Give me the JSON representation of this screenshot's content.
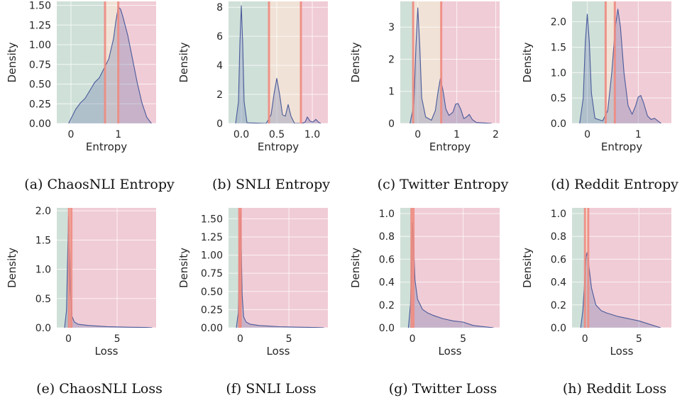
{
  "chart_data": [
    {
      "type": "area",
      "caption": "(a) ChaosNLI Entropy",
      "xlabel": "Entropy",
      "ylabel": "Density",
      "xlim": [
        -0.3,
        1.8
      ],
      "ylim": [
        0,
        1.55
      ],
      "xticks": [
        0,
        1
      ],
      "yticks": [
        0,
        0.25,
        0.5,
        0.75,
        1.0,
        1.25,
        1.5
      ],
      "ytick_labels": [
        "0.00",
        "0.25",
        "0.50",
        "0.75",
        "1.00",
        "1.25",
        "1.50"
      ],
      "thresholds": [
        0.72,
        1.0
      ],
      "regions": [
        "#cfe0d8",
        "#f0e2d6",
        "#f0ccd6"
      ],
      "density": {
        "x": [
          -0.05,
          0.0,
          0.1,
          0.2,
          0.3,
          0.4,
          0.5,
          0.6,
          0.7,
          0.8,
          0.9,
          0.95,
          1.0,
          1.05,
          1.1,
          1.2,
          1.3,
          1.4,
          1.5,
          1.6,
          1.7
        ],
        "y": [
          0.0,
          0.06,
          0.18,
          0.26,
          0.32,
          0.42,
          0.52,
          0.58,
          0.7,
          0.82,
          1.08,
          1.3,
          1.48,
          1.45,
          1.35,
          1.12,
          0.82,
          0.52,
          0.26,
          0.08,
          0.0
        ]
      }
    },
    {
      "type": "area",
      "caption": "(b) SNLI Entropy",
      "xlabel": "Entropy",
      "ylabel": "Density",
      "xlim": [
        -0.18,
        1.22
      ],
      "ylim": [
        0,
        8.4
      ],
      "xticks": [
        0,
        0.5,
        1
      ],
      "xtick_labels": [
        "0.0",
        "0.5",
        "1.0"
      ],
      "yticks": [
        0,
        2,
        4,
        6,
        8
      ],
      "thresholds": [
        0.39,
        0.84
      ],
      "regions": [
        "#cfe0d8",
        "#f0e2d6",
        "#f0ccd6"
      ],
      "density": {
        "x": [
          -0.08,
          -0.04,
          -0.02,
          0.0,
          0.02,
          0.04,
          0.08,
          0.35,
          0.42,
          0.46,
          0.5,
          0.54,
          0.58,
          0.62,
          0.66,
          0.7,
          0.75,
          0.85,
          0.9,
          0.93,
          0.97,
          1.01,
          1.05,
          1.09,
          1.12
        ],
        "y": [
          0.0,
          1.5,
          5.5,
          8.1,
          5.5,
          1.5,
          0.05,
          0.0,
          0.6,
          2.0,
          3.1,
          2.0,
          0.6,
          0.5,
          1.3,
          0.5,
          0.0,
          0.0,
          0.1,
          0.45,
          0.15,
          0.1,
          0.28,
          0.08,
          0.0
        ]
      }
    },
    {
      "type": "area",
      "caption": "(c) Twitter Entropy",
      "xlabel": "Entropy",
      "ylabel": "Density",
      "xlim": [
        -0.45,
        2.1
      ],
      "ylim": [
        0,
        3.8
      ],
      "xticks": [
        0,
        1,
        2
      ],
      "yticks": [
        0,
        1,
        2,
        3
      ],
      "thresholds": [
        -0.12,
        0.6
      ],
      "regions": [
        "#cfe0d8",
        "#f0e2d6",
        "#f0ccd6"
      ],
      "density": {
        "x": [
          -0.2,
          -0.1,
          -0.05,
          0.0,
          0.05,
          0.1,
          0.2,
          0.35,
          0.45,
          0.52,
          0.58,
          0.65,
          0.72,
          0.8,
          0.9,
          0.97,
          1.03,
          1.1,
          1.18,
          1.25,
          1.32,
          1.4,
          1.5,
          1.9
        ],
        "y": [
          0.0,
          0.6,
          2.4,
          3.6,
          2.4,
          0.8,
          0.2,
          0.1,
          0.4,
          1.0,
          1.4,
          1.0,
          0.45,
          0.25,
          0.35,
          0.6,
          0.62,
          0.45,
          0.15,
          0.2,
          0.28,
          0.12,
          0.03,
          0.0
        ]
      }
    },
    {
      "type": "area",
      "caption": "(d) Reddit Entropy",
      "xlabel": "Entropy",
      "ylabel": "Density",
      "xlim": [
        -0.3,
        1.65
      ],
      "ylim": [
        0,
        2.4
      ],
      "xticks": [
        0,
        1
      ],
      "yticks": [
        0,
        0.5,
        1.0,
        1.5,
        2.0
      ],
      "ytick_labels": [
        "0.0",
        "0.5",
        "1.0",
        "1.5",
        "2.0"
      ],
      "thresholds": [
        0.36,
        0.54
      ],
      "regions": [
        "#cfe0d8",
        "#f0e2d6",
        "#f0ccd6"
      ],
      "density": {
        "x": [
          -0.15,
          -0.08,
          -0.04,
          0.0,
          0.04,
          0.08,
          0.15,
          0.3,
          0.4,
          0.48,
          0.55,
          0.6,
          0.65,
          0.72,
          0.8,
          0.88,
          0.95,
          1.0,
          1.05,
          1.1,
          1.18,
          1.25,
          1.32,
          1.45
        ],
        "y": [
          0.0,
          0.5,
          1.6,
          2.15,
          1.6,
          0.6,
          0.1,
          0.05,
          0.25,
          1.0,
          1.9,
          2.25,
          1.9,
          1.0,
          0.35,
          0.18,
          0.35,
          0.52,
          0.55,
          0.42,
          0.15,
          0.08,
          0.1,
          0.0
        ]
      }
    },
    {
      "type": "area",
      "caption": "(e) ChaosNLI Loss",
      "xlabel": "Loss",
      "ylabel": "Density",
      "xlim": [
        -1.2,
        9.0
      ],
      "ylim": [
        0,
        2.05
      ],
      "xticks": [
        0,
        5
      ],
      "yticks": [
        0,
        0.5,
        1.0,
        1.5,
        2.0
      ],
      "ytick_labels": [
        "0.0",
        "0.5",
        "1.0",
        "1.5",
        "2.0"
      ],
      "thresholds": [
        0.05,
        0.3
      ],
      "regions": [
        "#cfe0d8",
        "#f0e2d6",
        "#f0ccd6"
      ],
      "density": {
        "x": [
          -0.4,
          -0.2,
          -0.1,
          0.0,
          0.1,
          0.2,
          0.35,
          0.6,
          1.0,
          2.0,
          4.0,
          6.0,
          8.0,
          8.6
        ],
        "y": [
          0.0,
          0.3,
          1.1,
          1.9,
          1.5,
          0.6,
          0.2,
          0.1,
          0.06,
          0.04,
          0.02,
          0.01,
          0.005,
          0.0
        ]
      }
    },
    {
      "type": "area",
      "caption": "(f) SNLI Loss",
      "xlabel": "Loss",
      "ylabel": "Density",
      "xlim": [
        -1.2,
        9.0
      ],
      "ylim": [
        0,
        1.65
      ],
      "xticks": [
        0,
        5
      ],
      "yticks": [
        0,
        0.25,
        0.5,
        0.75,
        1.0,
        1.25,
        1.5
      ],
      "ytick_labels": [
        "0.00",
        "0.25",
        "0.50",
        "0.75",
        "1.00",
        "1.25",
        "1.50"
      ],
      "thresholds": [
        -0.1,
        0.05
      ],
      "regions": [
        "#cfe0d8",
        "#f0e2d6",
        "#f0ccd6"
      ],
      "density": {
        "x": [
          -0.4,
          -0.2,
          -0.1,
          0.0,
          0.1,
          0.2,
          0.35,
          0.6,
          1.0,
          2.0,
          4.0,
          6.0,
          8.0,
          8.6
        ],
        "y": [
          0.0,
          0.2,
          0.8,
          1.6,
          1.2,
          0.45,
          0.15,
          0.08,
          0.05,
          0.03,
          0.015,
          0.008,
          0.003,
          0.0
        ]
      }
    },
    {
      "type": "area",
      "caption": "(g) Twitter Loss",
      "xlabel": "Loss",
      "ylabel": "Density",
      "xlim": [
        -1.2,
        8.6
      ],
      "ylim": [
        0,
        1.05
      ],
      "xticks": [
        0,
        5
      ],
      "yticks": [
        0,
        0.2,
        0.4,
        0.6,
        0.8,
        1.0
      ],
      "ytick_labels": [
        "0.0",
        "0.2",
        "0.4",
        "0.6",
        "0.8",
        "1.0"
      ],
      "thresholds": [
        -0.1,
        0.1
      ],
      "regions": [
        "#cfe0d8",
        "#f0e2d6",
        "#f0ccd6"
      ],
      "density": {
        "x": [
          -0.4,
          -0.2,
          -0.1,
          0.0,
          0.1,
          0.25,
          0.5,
          1.0,
          1.5,
          2.0,
          3.0,
          4.0,
          5.0,
          6.0,
          7.0,
          8.0
        ],
        "y": [
          0.0,
          0.2,
          0.5,
          0.92,
          0.75,
          0.42,
          0.25,
          0.16,
          0.13,
          0.11,
          0.08,
          0.06,
          0.05,
          0.02,
          0.01,
          0.0
        ]
      }
    },
    {
      "type": "area",
      "caption": "(h) Reddit Loss",
      "xlabel": "Loss",
      "ylabel": "Density",
      "xlim": [
        -1.2,
        8.0
      ],
      "ylim": [
        0,
        1.05
      ],
      "xticks": [
        0,
        5
      ],
      "yticks": [
        0,
        0.2,
        0.4,
        0.6,
        0.8,
        1.0
      ],
      "ytick_labels": [
        "0.0",
        "0.2",
        "0.4",
        "0.6",
        "0.8",
        "1.0"
      ],
      "thresholds": [
        0.0,
        0.3
      ],
      "regions": [
        "#cfe0d8",
        "#f0e2d6",
        "#f0ccd6"
      ],
      "density": {
        "x": [
          -0.4,
          -0.2,
          0.0,
          0.1,
          0.2,
          0.35,
          0.6,
          1.0,
          1.5,
          2.0,
          3.0,
          4.0,
          5.0,
          6.0,
          7.0
        ],
        "y": [
          0.0,
          0.15,
          0.45,
          0.62,
          0.66,
          0.55,
          0.35,
          0.2,
          0.15,
          0.13,
          0.1,
          0.08,
          0.06,
          0.03,
          0.0
        ]
      }
    }
  ],
  "colors": {
    "kde_stroke": "#4a5a9a",
    "kde_fill": "rgba(95,110,170,0.28)",
    "threshold_line": "#ee8a80",
    "panel_bg": "#eaeaf2",
    "grid": "#ffffff"
  }
}
